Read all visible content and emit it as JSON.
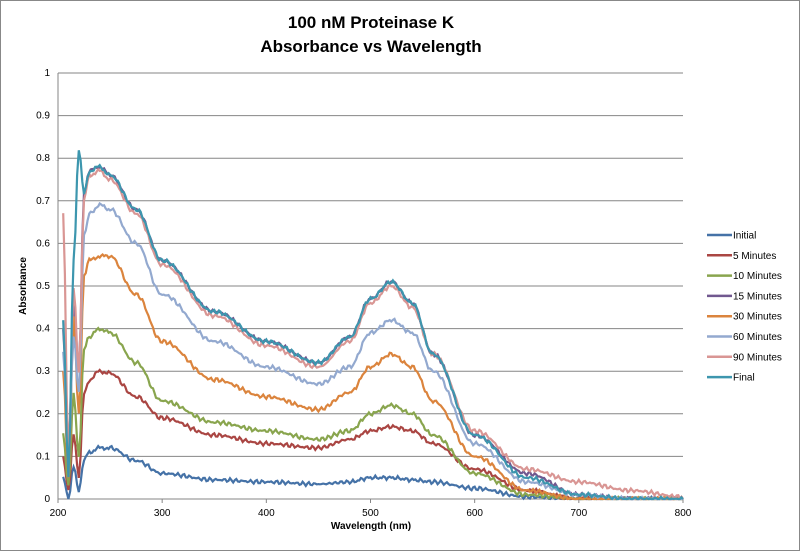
{
  "chart_data": {
    "type": "line",
    "title": "100 nM Proteinase K",
    "subtitle": "Absorbance vs Wavelength",
    "xlabel": "Wavelength (nm)",
    "ylabel": "Absorbance",
    "xlim": [
      200,
      800
    ],
    "ylim": [
      0,
      1
    ],
    "xticks": [
      "200",
      "300",
      "400",
      "500",
      "600",
      "700",
      "800"
    ],
    "yticks": [
      "0",
      "0.1",
      "0.2",
      "0.3",
      "0.4",
      "0.5",
      "0.6",
      "0.7",
      "0.8",
      "0.9",
      "1"
    ],
    "grid": "horizontal",
    "legend": "right",
    "x": [
      205,
      210,
      215,
      220,
      225,
      230,
      240,
      250,
      275,
      300,
      350,
      400,
      450,
      480,
      500,
      520,
      540,
      560,
      600,
      650,
      700,
      750,
      800
    ],
    "series": [
      {
        "name": "Initial",
        "color": "#4572A7",
        "values": [
          0.05,
          0.0,
          0.08,
          0.02,
          0.09,
          0.11,
          0.12,
          0.12,
          0.09,
          0.06,
          0.045,
          0.04,
          0.035,
          0.04,
          0.05,
          0.05,
          0.045,
          0.04,
          0.025,
          0.005,
          0,
          0,
          0
        ]
      },
      {
        "name": "5 Minutes",
        "color": "#AA4643",
        "values": [
          0.1,
          0.02,
          0.15,
          0.05,
          0.25,
          0.28,
          0.3,
          0.295,
          0.24,
          0.19,
          0.15,
          0.13,
          0.12,
          0.14,
          0.16,
          0.17,
          0.16,
          0.13,
          0.07,
          0.02,
          0,
          0,
          0
        ]
      },
      {
        "name": "10 Minutes",
        "color": "#89A54E",
        "values": [
          0.15,
          0.03,
          0.25,
          0.1,
          0.35,
          0.38,
          0.4,
          0.39,
          0.32,
          0.23,
          0.18,
          0.16,
          0.14,
          0.16,
          0.2,
          0.22,
          0.2,
          0.15,
          0.06,
          0.01,
          0,
          0,
          0
        ]
      },
      {
        "name": "15 Minutes",
        "color": "#71588F",
        "values": [
          0.4,
          0.1,
          0.45,
          0.3,
          0.72,
          0.77,
          0.78,
          0.76,
          0.68,
          0.56,
          0.44,
          0.37,
          0.32,
          0.38,
          0.47,
          0.51,
          0.46,
          0.34,
          0.15,
          0.06,
          0.01,
          0,
          0
        ]
      },
      {
        "name": "30 Minutes",
        "color": "#DB843D",
        "values": [
          0.3,
          0.05,
          0.43,
          0.2,
          0.52,
          0.56,
          0.57,
          0.57,
          0.48,
          0.37,
          0.28,
          0.24,
          0.21,
          0.25,
          0.31,
          0.34,
          0.31,
          0.23,
          0.1,
          0.02,
          0,
          0,
          0
        ]
      },
      {
        "name": "60 Minutes",
        "color": "#93A9CF",
        "values": [
          0.35,
          0.1,
          0.38,
          0.25,
          0.62,
          0.67,
          0.69,
          0.68,
          0.6,
          0.48,
          0.37,
          0.31,
          0.27,
          0.31,
          0.39,
          0.42,
          0.39,
          0.3,
          0.13,
          0.04,
          0.01,
          0,
          0
        ]
      },
      {
        "name": "90 Minutes",
        "color": "#D99694",
        "values": [
          0.67,
          0.1,
          0.5,
          0.3,
          0.7,
          0.76,
          0.77,
          0.75,
          0.67,
          0.55,
          0.43,
          0.36,
          0.31,
          0.37,
          0.46,
          0.5,
          0.45,
          0.34,
          0.16,
          0.07,
          0.04,
          0.02,
          0.005
        ]
      },
      {
        "name": "Final",
        "color": "#3D96AE",
        "values": [
          0.42,
          0.05,
          0.56,
          0.82,
          0.72,
          0.77,
          0.78,
          0.76,
          0.68,
          0.56,
          0.44,
          0.37,
          0.32,
          0.38,
          0.47,
          0.51,
          0.46,
          0.34,
          0.15,
          0.05,
          0.01,
          0,
          0
        ]
      }
    ]
  }
}
